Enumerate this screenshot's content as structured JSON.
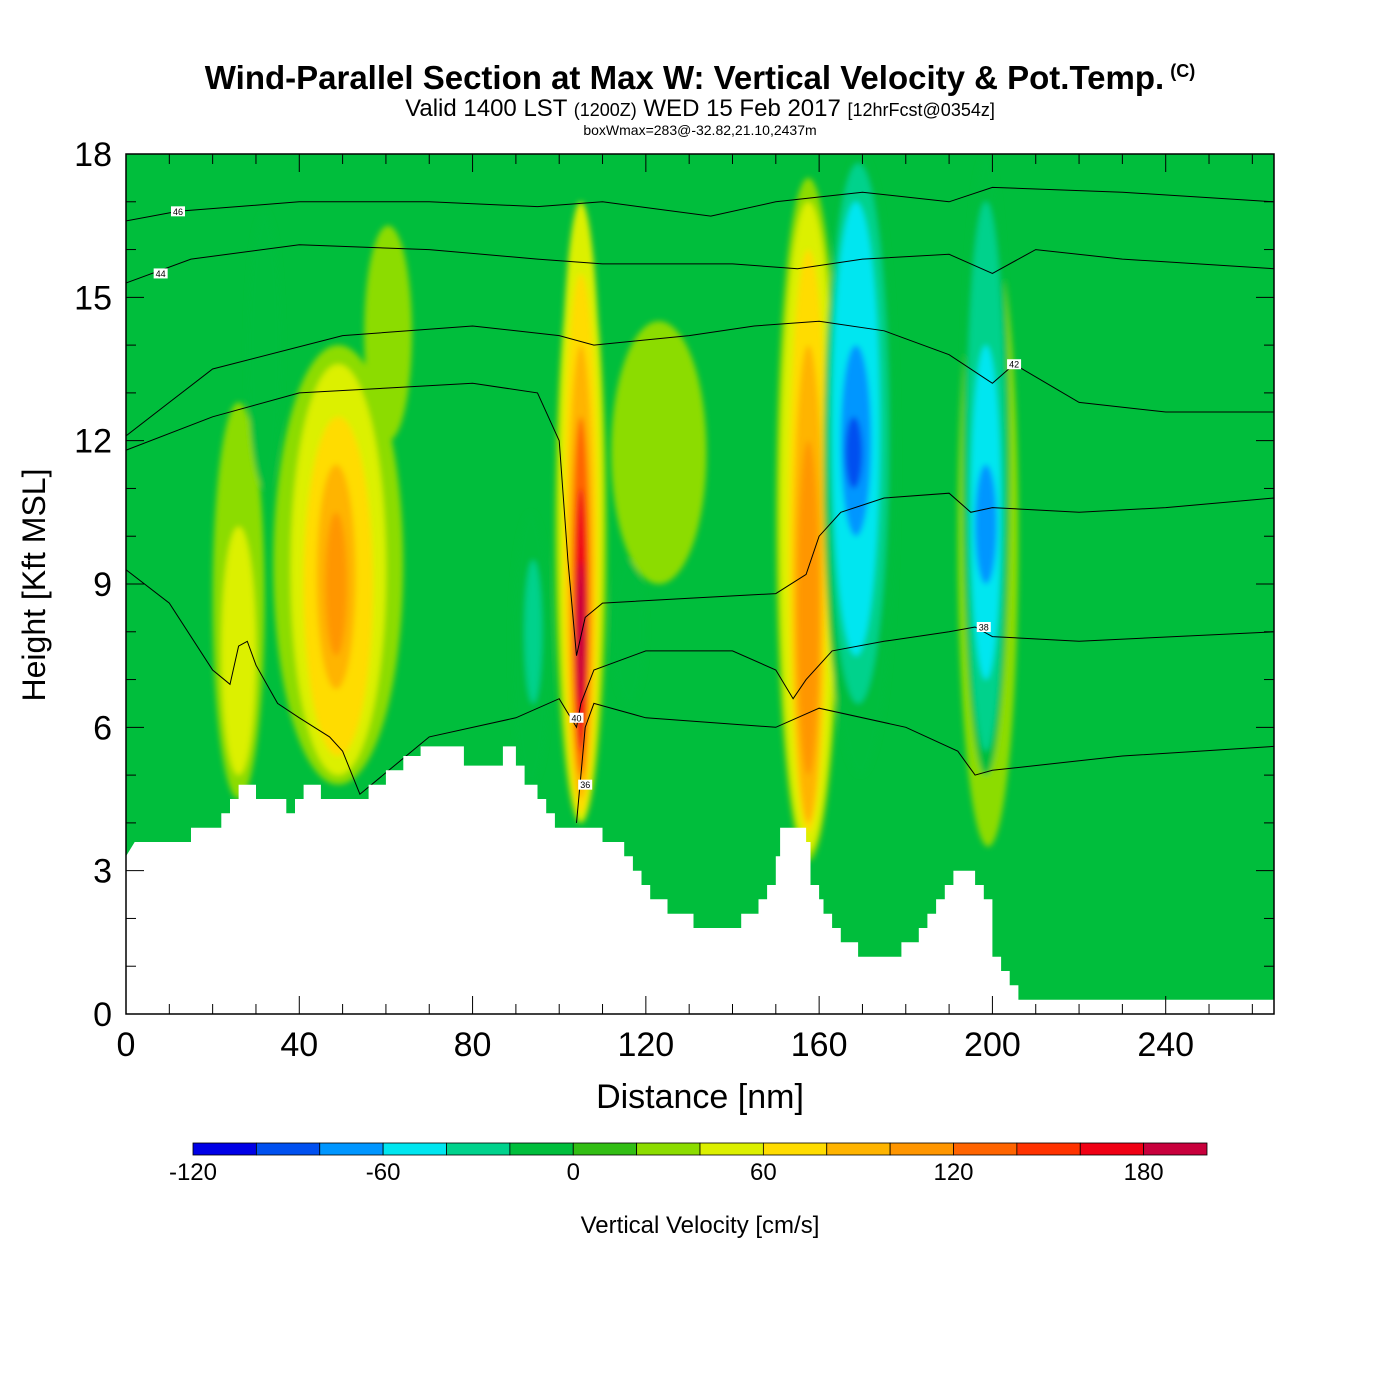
{
  "header": {
    "title_main": "Wind-Parallel Section at Max W: Vertical Velocity & Pot.Temp.",
    "title_mark": "(C)",
    "subtitle_pre": "Valid 1400 LST",
    "subtitle_utc": "(1200Z)",
    "subtitle_date": "WED 15 Feb 2017",
    "subtitle_fcst": "[12hrFcst@0354z]",
    "box_info": "boxWmax=283@-32.82,21.10,2437m"
  },
  "chart_data": {
    "type": "heatmap",
    "title": "Wind-Parallel Section at Max W: Vertical Velocity & Pot.Temp.",
    "xlabel": "Distance [nm]",
    "ylabel": "Height [Kft MSL]",
    "xlim": [
      0,
      265
    ],
    "ylim": [
      0,
      18
    ],
    "x_ticks": [
      0,
      40,
      80,
      120,
      160,
      200,
      240
    ],
    "y_ticks": [
      0,
      3,
      6,
      9,
      12,
      15,
      18
    ],
    "colorbar": {
      "label": "Vertical Velocity [cm/s]",
      "levels": [
        -120,
        -100,
        -80,
        -60,
        -40,
        -20,
        0,
        20,
        40,
        60,
        80,
        100,
        120,
        140,
        160,
        180,
        200
      ],
      "tick_labels": [
        "-120",
        "-60",
        "0",
        "60",
        "120",
        "180"
      ],
      "tick_values": [
        -120,
        -60,
        0,
        60,
        120,
        180
      ],
      "colors": [
        "#0000e6",
        "#0050f0",
        "#0096ff",
        "#00e6f0",
        "#00d28c",
        "#00be3c",
        "#32be14",
        "#8cdc00",
        "#dcf000",
        "#ffdc00",
        "#ffb400",
        "#ff9600",
        "#ff6400",
        "#ff3200",
        "#f00014",
        "#c8003c"
      ]
    },
    "cells": [
      {
        "x": [
          20,
          32
        ],
        "y": [
          4.5,
          12.8
        ],
        "value": 20
      },
      {
        "x": [
          22,
          30
        ],
        "y": [
          5.0,
          10.2
        ],
        "value": 40
      },
      {
        "x": [
          28,
          36
        ],
        "y": [
          11.0,
          16.8
        ],
        "value": -20
      },
      {
        "x": [
          34,
          64
        ],
        "y": [
          4.8,
          14.0
        ],
        "value": 20
      },
      {
        "x": [
          38,
          60
        ],
        "y": [
          5.0,
          13.6
        ],
        "value": 40
      },
      {
        "x": [
          41,
          57
        ],
        "y": [
          5.4,
          12.5
        ],
        "value": 60
      },
      {
        "x": [
          44,
          53
        ],
        "y": [
          6.8,
          11.5
        ],
        "value": 80
      },
      {
        "x": [
          46,
          51
        ],
        "y": [
          7.5,
          10.5
        ],
        "value": 100
      },
      {
        "x": [
          55,
          66
        ],
        "y": [
          12.0,
          16.5
        ],
        "value": 20
      },
      {
        "x": [
          89,
          98
        ],
        "y": [
          4.8,
          10.5
        ],
        "value": -20
      },
      {
        "x": [
          92,
          96
        ],
        "y": [
          6.5,
          9.5
        ],
        "value": -40
      },
      {
        "x": [
          99,
          111
        ],
        "y": [
          4.0,
          16.0
        ],
        "value": 20
      },
      {
        "x": [
          100,
          110
        ],
        "y": [
          4.0,
          17.0
        ],
        "value": 40
      },
      {
        "x": [
          101,
          109
        ],
        "y": [
          4.2,
          15.5
        ],
        "value": 60
      },
      {
        "x": [
          102,
          108
        ],
        "y": [
          4.5,
          14.0
        ],
        "value": 80
      },
      {
        "x": [
          103,
          107
        ],
        "y": [
          5.0,
          12.5
        ],
        "value": 120
      },
      {
        "x": [
          103.5,
          106.5
        ],
        "y": [
          5.5,
          11.0
        ],
        "value": 160
      },
      {
        "x": [
          104,
          106
        ],
        "y": [
          6.5,
          9.5
        ],
        "value": 180
      },
      {
        "x": [
          112,
          120
        ],
        "y": [
          6.5,
          9.5
        ],
        "value": -20
      },
      {
        "x": [
          112,
          134
        ],
        "y": [
          9.0,
          14.5
        ],
        "value": 20
      },
      {
        "x": [
          150,
          165
        ],
        "y": [
          3.2,
          17.5
        ],
        "value": 20
      },
      {
        "x": [
          151,
          164
        ],
        "y": [
          3.4,
          17.0
        ],
        "value": 40
      },
      {
        "x": [
          153,
          162
        ],
        "y": [
          3.8,
          16.0
        ],
        "value": 60
      },
      {
        "x": [
          154,
          161
        ],
        "y": [
          4.0,
          14.0
        ],
        "value": 80
      },
      {
        "x": [
          155,
          160
        ],
        "y": [
          5.0,
          12.0
        ],
        "value": 100
      },
      {
        "x": [
          161,
          178
        ],
        "y": [
          5.0,
          18.0
        ],
        "value": -20
      },
      {
        "x": [
          162,
          176
        ],
        "y": [
          6.5,
          17.8
        ],
        "value": -40
      },
      {
        "x": [
          163,
          174
        ],
        "y": [
          7.5,
          17.0
        ],
        "value": -60
      },
      {
        "x": [
          165,
          172
        ],
        "y": [
          10.0,
          14.0
        ],
        "value": -80
      },
      {
        "x": [
          166,
          170
        ],
        "y": [
          11.0,
          12.5
        ],
        "value": -100
      },
      {
        "x": [
          192,
          206
        ],
        "y": [
          3.5,
          16.5
        ],
        "value": 20
      },
      {
        "x": [
          193,
          204
        ],
        "y": [
          5.0,
          18.0
        ],
        "value": -20
      },
      {
        "x": [
          194,
          203
        ],
        "y": [
          5.5,
          17.0
        ],
        "value": -40
      },
      {
        "x": [
          195,
          202
        ],
        "y": [
          7.0,
          14.0
        ],
        "value": -60
      },
      {
        "x": [
          196,
          201
        ],
        "y": [
          9.0,
          11.5
        ],
        "value": -80
      }
    ],
    "terrain": [
      [
        0,
        3.3
      ],
      [
        2,
        3.6
      ],
      [
        15,
        3.6
      ],
      [
        15,
        3.9
      ],
      [
        22,
        3.9
      ],
      [
        22,
        4.2
      ],
      [
        24,
        4.2
      ],
      [
        24,
        4.5
      ],
      [
        26,
        4.5
      ],
      [
        26,
        4.8
      ],
      [
        30,
        4.8
      ],
      [
        30,
        4.5
      ],
      [
        37,
        4.5
      ],
      [
        37,
        4.2
      ],
      [
        39,
        4.2
      ],
      [
        39,
        4.5
      ],
      [
        41,
        4.5
      ],
      [
        41,
        4.8
      ],
      [
        45,
        4.8
      ],
      [
        45,
        4.5
      ],
      [
        56,
        4.5
      ],
      [
        56,
        4.8
      ],
      [
        60,
        4.8
      ],
      [
        60,
        5.1
      ],
      [
        64,
        5.1
      ],
      [
        64,
        5.4
      ],
      [
        68,
        5.4
      ],
      [
        68,
        5.6
      ],
      [
        78,
        5.6
      ],
      [
        78,
        5.2
      ],
      [
        87,
        5.2
      ],
      [
        87,
        5.6
      ],
      [
        90,
        5.6
      ],
      [
        90,
        5.2
      ],
      [
        92,
        5.2
      ],
      [
        92,
        4.8
      ],
      [
        95,
        4.8
      ],
      [
        95,
        4.5
      ],
      [
        97,
        4.5
      ],
      [
        97,
        4.2
      ],
      [
        99,
        4.2
      ],
      [
        99,
        3.9
      ],
      [
        110,
        3.9
      ],
      [
        110,
        3.6
      ],
      [
        115,
        3.6
      ],
      [
        115,
        3.3
      ],
      [
        117,
        3.3
      ],
      [
        117,
        3.0
      ],
      [
        119,
        3.0
      ],
      [
        119,
        2.7
      ],
      [
        121,
        2.7
      ],
      [
        121,
        2.4
      ],
      [
        125,
        2.4
      ],
      [
        125,
        2.1
      ],
      [
        131,
        2.1
      ],
      [
        131,
        1.8
      ],
      [
        142,
        1.8
      ],
      [
        142,
        2.1
      ],
      [
        146,
        2.1
      ],
      [
        146,
        2.4
      ],
      [
        148,
        2.4
      ],
      [
        148,
        2.7
      ],
      [
        150,
        2.7
      ],
      [
        150,
        3.3
      ],
      [
        151,
        3.3
      ],
      [
        151,
        3.9
      ],
      [
        157,
        3.9
      ],
      [
        157,
        3.6
      ],
      [
        158,
        3.6
      ],
      [
        158,
        2.7
      ],
      [
        160,
        2.7
      ],
      [
        160,
        2.4
      ],
      [
        161,
        2.4
      ],
      [
        161,
        2.1
      ],
      [
        163,
        2.1
      ],
      [
        163,
        1.8
      ],
      [
        165,
        1.8
      ],
      [
        165,
        1.5
      ],
      [
        169,
        1.5
      ],
      [
        169,
        1.2
      ],
      [
        179,
        1.2
      ],
      [
        179,
        1.5
      ],
      [
        183,
        1.5
      ],
      [
        183,
        1.8
      ],
      [
        185,
        1.8
      ],
      [
        185,
        2.1
      ],
      [
        187,
        2.1
      ],
      [
        187,
        2.4
      ],
      [
        189,
        2.4
      ],
      [
        189,
        2.7
      ],
      [
        191,
        2.7
      ],
      [
        191,
        3.0
      ],
      [
        196,
        3.0
      ],
      [
        196,
        2.7
      ],
      [
        198,
        2.7
      ],
      [
        198,
        2.4
      ],
      [
        200,
        2.4
      ],
      [
        200,
        1.2
      ],
      [
        202,
        1.2
      ],
      [
        202,
        0.9
      ],
      [
        204,
        0.9
      ],
      [
        204,
        0.6
      ],
      [
        206,
        0.6
      ],
      [
        206,
        0.3
      ],
      [
        265,
        0.3
      ]
    ],
    "isentropes": [
      {
        "label": "36",
        "label_at": [
          106,
          4.8
        ],
        "points": [
          [
            104,
            4.0
          ],
          [
            105,
            5.0
          ],
          [
            106,
            6.0
          ],
          [
            108,
            6.5
          ],
          [
            120,
            6.2
          ],
          [
            150,
            6.0
          ],
          [
            160,
            6.4
          ],
          [
            180,
            6.0
          ],
          [
            192,
            5.5
          ],
          [
            196,
            5.0
          ],
          [
            200,
            5.1
          ],
          [
            230,
            5.4
          ],
          [
            265,
            5.6
          ]
        ]
      },
      {
        "label": "38",
        "label_at": [
          198,
          8.1
        ],
        "points": [
          [
            0,
            9.3
          ],
          [
            10,
            8.6
          ],
          [
            20,
            7.2
          ],
          [
            24,
            6.9
          ],
          [
            26,
            7.7
          ],
          [
            28,
            7.8
          ],
          [
            30,
            7.3
          ],
          [
            35,
            6.5
          ],
          [
            40,
            6.2
          ],
          [
            47,
            5.8
          ],
          [
            50,
            5.5
          ],
          [
            54,
            4.6
          ],
          [
            70,
            5.8
          ],
          [
            90,
            6.2
          ],
          [
            100,
            6.6
          ],
          [
            104,
            6.0
          ],
          [
            105,
            6.5
          ],
          [
            108,
            7.2
          ],
          [
            120,
            7.6
          ],
          [
            140,
            7.6
          ],
          [
            150,
            7.2
          ],
          [
            154,
            6.6
          ],
          [
            157,
            7.0
          ],
          [
            163,
            7.6
          ],
          [
            175,
            7.8
          ],
          [
            190,
            8.0
          ],
          [
            196,
            8.1
          ],
          [
            200,
            7.9
          ],
          [
            220,
            7.8
          ],
          [
            265,
            8.0
          ]
        ]
      },
      {
        "label": "40",
        "label_at": [
          104,
          6.2
        ],
        "points": [
          [
            0,
            11.8
          ],
          [
            20,
            12.5
          ],
          [
            40,
            13.0
          ],
          [
            60,
            13.1
          ],
          [
            80,
            13.2
          ],
          [
            95,
            13.0
          ],
          [
            100,
            12.0
          ],
          [
            102,
            9.5
          ],
          [
            104,
            7.5
          ],
          [
            106,
            8.3
          ],
          [
            110,
            8.6
          ],
          [
            130,
            8.7
          ],
          [
            150,
            8.8
          ],
          [
            157,
            9.2
          ],
          [
            160,
            10.0
          ],
          [
            165,
            10.5
          ],
          [
            175,
            10.8
          ],
          [
            190,
            10.9
          ],
          [
            195,
            10.5
          ],
          [
            200,
            10.6
          ],
          [
            220,
            10.5
          ],
          [
            240,
            10.6
          ],
          [
            265,
            10.8
          ]
        ]
      },
      {
        "label": "42",
        "label_at": [
          205,
          13.6
        ],
        "points": [
          [
            0,
            12.1
          ],
          [
            10,
            12.8
          ],
          [
            20,
            13.5
          ],
          [
            50,
            14.2
          ],
          [
            80,
            14.4
          ],
          [
            100,
            14.2
          ],
          [
            108,
            14.0
          ],
          [
            130,
            14.2
          ],
          [
            145,
            14.4
          ],
          [
            160,
            14.5
          ],
          [
            175,
            14.3
          ],
          [
            190,
            13.8
          ],
          [
            200,
            13.2
          ],
          [
            205,
            13.6
          ],
          [
            220,
            12.8
          ],
          [
            240,
            12.6
          ],
          [
            265,
            12.6
          ]
        ]
      },
      {
        "label": "44",
        "label_at": [
          8,
          15.5
        ],
        "points": [
          [
            0,
            15.3
          ],
          [
            15,
            15.8
          ],
          [
            40,
            16.1
          ],
          [
            70,
            16.0
          ],
          [
            95,
            15.8
          ],
          [
            110,
            15.7
          ],
          [
            140,
            15.7
          ],
          [
            155,
            15.6
          ],
          [
            170,
            15.8
          ],
          [
            190,
            15.9
          ],
          [
            200,
            15.5
          ],
          [
            210,
            16.0
          ],
          [
            230,
            15.8
          ],
          [
            265,
            15.6
          ]
        ]
      },
      {
        "label": "46",
        "label_at": [
          12,
          16.8
        ],
        "points": [
          [
            0,
            16.6
          ],
          [
            12,
            16.8
          ],
          [
            40,
            17.0
          ],
          [
            70,
            17.0
          ],
          [
            95,
            16.9
          ],
          [
            110,
            17.0
          ],
          [
            135,
            16.7
          ],
          [
            150,
            17.0
          ],
          [
            170,
            17.2
          ],
          [
            190,
            17.0
          ],
          [
            200,
            17.3
          ],
          [
            230,
            17.2
          ],
          [
            265,
            17.0
          ]
        ]
      }
    ]
  }
}
